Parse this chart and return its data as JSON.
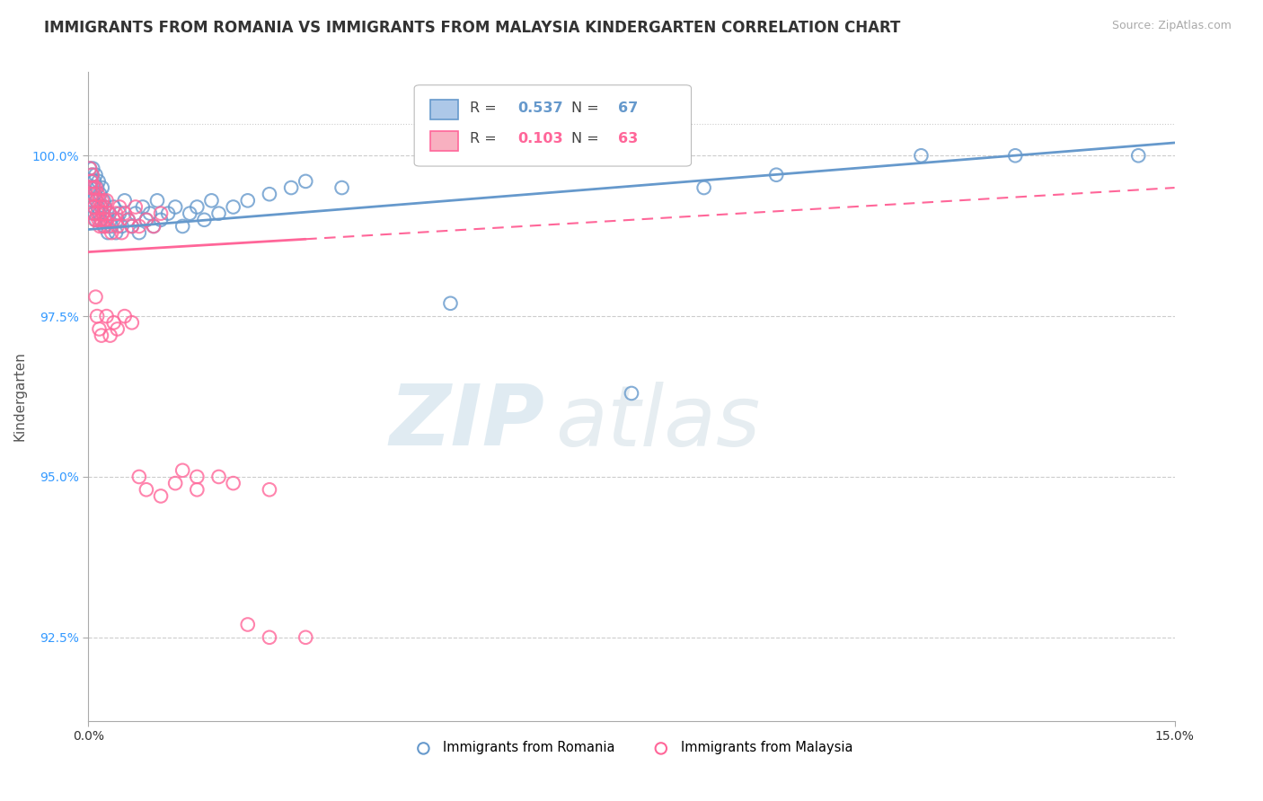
{
  "title": "IMMIGRANTS FROM ROMANIA VS IMMIGRANTS FROM MALAYSIA KINDERGARTEN CORRELATION CHART",
  "source_text": "Source: ZipAtlas.com",
  "ylabel": "Kindergarten",
  "xlim": [
    0.0,
    15.0
  ],
  "ylim": [
    91.2,
    101.3
  ],
  "yticks": [
    92.5,
    95.0,
    97.5,
    100.0
  ],
  "ytick_labels": [
    "92.5%",
    "95.0%",
    "97.5%",
    "100.0%"
  ],
  "xticks": [
    0.0,
    15.0
  ],
  "xtick_labels": [
    "0.0%",
    "15.0%"
  ],
  "romania_color": "#6699CC",
  "malaysia_color": "#FF6699",
  "romania_R": 0.537,
  "romania_N": 67,
  "malaysia_R": 0.103,
  "malaysia_N": 63,
  "romania_x": [
    0.02,
    0.03,
    0.04,
    0.05,
    0.06,
    0.06,
    0.07,
    0.07,
    0.08,
    0.08,
    0.09,
    0.1,
    0.1,
    0.11,
    0.12,
    0.13,
    0.14,
    0.15,
    0.16,
    0.17,
    0.18,
    0.19,
    0.2,
    0.21,
    0.22,
    0.23,
    0.25,
    0.27,
    0.29,
    0.32,
    0.35,
    0.38,
    0.4,
    0.43,
    0.46,
    0.5,
    0.55,
    0.6,
    0.65,
    0.7,
    0.75,
    0.8,
    0.85,
    0.9,
    0.95,
    1.0,
    1.1,
    1.2,
    1.3,
    1.4,
    1.5,
    1.6,
    1.7,
    1.8,
    2.0,
    2.2,
    2.5,
    2.8,
    3.0,
    3.5,
    5.0,
    7.5,
    8.5,
    9.5,
    11.5,
    12.8,
    14.5
  ],
  "romania_y": [
    99.8,
    99.5,
    99.6,
    99.7,
    99.8,
    99.3,
    99.5,
    99.2,
    99.6,
    99.1,
    99.4,
    99.7,
    99.0,
    99.3,
    99.5,
    99.2,
    99.6,
    99.1,
    99.4,
    99.0,
    99.2,
    99.5,
    99.1,
    99.3,
    98.9,
    99.2,
    99.0,
    98.8,
    99.1,
    98.9,
    99.2,
    98.8,
    99.0,
    99.1,
    98.9,
    99.3,
    99.0,
    98.9,
    99.1,
    98.8,
    99.2,
    99.0,
    99.1,
    98.9,
    99.3,
    99.0,
    99.1,
    99.2,
    98.9,
    99.1,
    99.2,
    99.0,
    99.3,
    99.1,
    99.2,
    99.3,
    99.4,
    99.5,
    99.6,
    99.5,
    97.7,
    96.3,
    99.5,
    99.7,
    100.0,
    100.0,
    100.0
  ],
  "malaysia_x": [
    0.02,
    0.03,
    0.04,
    0.05,
    0.06,
    0.06,
    0.07,
    0.08,
    0.09,
    0.1,
    0.11,
    0.12,
    0.13,
    0.14,
    0.15,
    0.16,
    0.17,
    0.18,
    0.19,
    0.2,
    0.21,
    0.22,
    0.23,
    0.25,
    0.27,
    0.29,
    0.32,
    0.35,
    0.38,
    0.4,
    0.43,
    0.46,
    0.5,
    0.55,
    0.6,
    0.65,
    0.7,
    0.8,
    0.9,
    1.0,
    0.1,
    0.12,
    0.15,
    0.18,
    0.25,
    0.3,
    0.35,
    0.4,
    0.5,
    0.6,
    0.7,
    0.8,
    1.0,
    1.2,
    1.5,
    2.0,
    2.5,
    1.3,
    1.5,
    1.8,
    2.2,
    2.5,
    3.0
  ],
  "malaysia_y": [
    99.8,
    99.5,
    99.6,
    99.7,
    99.4,
    99.1,
    99.5,
    99.2,
    99.0,
    99.5,
    99.3,
    99.1,
    99.4,
    99.0,
    99.3,
    98.9,
    99.2,
    99.0,
    99.3,
    99.1,
    98.9,
    99.2,
    99.0,
    99.3,
    98.9,
    99.1,
    98.8,
    99.0,
    99.1,
    98.9,
    99.2,
    98.8,
    99.1,
    99.0,
    98.9,
    99.2,
    98.9,
    99.0,
    98.9,
    99.1,
    97.8,
    97.5,
    97.3,
    97.2,
    97.5,
    97.2,
    97.4,
    97.3,
    97.5,
    97.4,
    95.0,
    94.8,
    94.7,
    94.9,
    95.0,
    94.9,
    94.8,
    95.1,
    94.8,
    95.0,
    92.7,
    92.5,
    92.5
  ],
  "watermark_zip": "ZIP",
  "watermark_atlas": "atlas",
  "background_color": "#ffffff",
  "grid_color": "#cccccc",
  "title_fontsize": 12,
  "axis_label_fontsize": 11,
  "tick_fontsize": 10,
  "ytick_color": "#3399FF",
  "trend_line_extend_x": 15.0
}
